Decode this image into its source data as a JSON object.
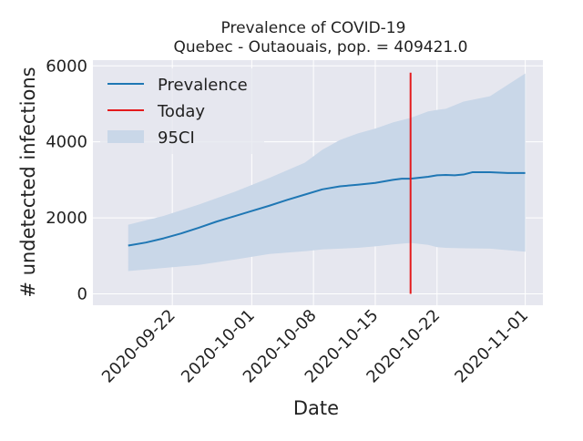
{
  "chart_data": {
    "type": "line",
    "title": "Prevalence of COVID-19",
    "subtitle": "Quebec - Outaouais, pop. = 409421.0",
    "xlabel": "Date",
    "ylabel": "# undetected infections",
    "xlim": [
      "2020-09-13",
      "2020-11-03"
    ],
    "ylim": [
      -300,
      6150
    ],
    "xticks": [
      "2020-09-22",
      "2020-10-01",
      "2020-10-08",
      "2020-10-15",
      "2020-10-22",
      "2020-11-01"
    ],
    "yticks": [
      0,
      2000,
      4000,
      6000
    ],
    "grid": true,
    "legend": "top-left",
    "legend_entries": [
      "Prevalence",
      "Today",
      "95CI"
    ],
    "colors": {
      "prevalence": "#1f77b4",
      "today": "#e41a1c",
      "ci": "#c9d7e8",
      "plot_bg": "#e6e7ef",
      "grid": "#ffffff"
    },
    "series": [
      {
        "name": "Prevalence",
        "x": [
          "2020-09-17",
          "2020-09-19",
          "2020-09-21",
          "2020-09-23",
          "2020-09-25",
          "2020-09-27",
          "2020-09-29",
          "2020-10-01",
          "2020-10-03",
          "2020-10-05",
          "2020-10-07",
          "2020-10-09",
          "2020-10-11",
          "2020-10-13",
          "2020-10-15",
          "2020-10-17",
          "2020-10-18",
          "2020-10-19",
          "2020-10-21",
          "2020-10-22",
          "2020-10-23",
          "2020-10-24",
          "2020-10-25",
          "2020-10-26",
          "2020-10-28",
          "2020-10-30",
          "2020-11-01"
        ],
        "y": [
          1270,
          1350,
          1460,
          1590,
          1740,
          1900,
          2040,
          2180,
          2320,
          2470,
          2610,
          2750,
          2830,
          2870,
          2920,
          3000,
          3030,
          3030,
          3080,
          3120,
          3130,
          3120,
          3140,
          3200,
          3200,
          3180,
          3180
        ]
      },
      {
        "name": "95CI",
        "x": [
          "2020-09-17",
          "2020-09-21",
          "2020-09-25",
          "2020-09-29",
          "2020-10-03",
          "2020-10-07",
          "2020-10-09",
          "2020-10-11",
          "2020-10-13",
          "2020-10-15",
          "2020-10-17",
          "2020-10-19",
          "2020-10-21",
          "2020-10-22",
          "2020-10-23",
          "2020-10-25",
          "2020-10-28",
          "2020-11-01"
        ],
        "lower": [
          600,
          680,
          760,
          900,
          1050,
          1120,
          1170,
          1190,
          1210,
          1250,
          1300,
          1340,
          1290,
          1230,
          1210,
          1200,
          1190,
          1110
        ],
        "upper": [
          1820,
          2050,
          2350,
          2680,
          3050,
          3450,
          3790,
          4050,
          4220,
          4350,
          4510,
          4630,
          4800,
          4840,
          4870,
          5060,
          5200,
          5800
        ]
      }
    ],
    "today": {
      "name": "Today",
      "x": "2020-10-19",
      "y": [
        0,
        5820
      ]
    }
  }
}
